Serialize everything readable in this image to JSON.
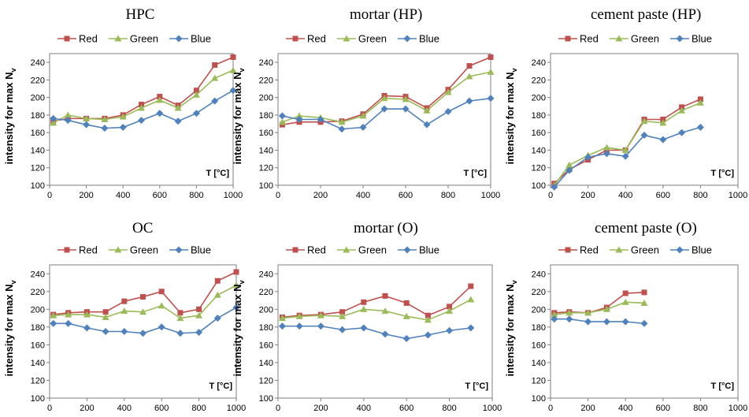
{
  "colors": {
    "Red": "#c0504d",
    "Green": "#9bbb59",
    "Blue": "#4f81bd"
  },
  "chart_data": [
    {
      "type": "line",
      "title": "HPC",
      "ylabel": "intensity for max N",
      "ylabel_sub": "v",
      "xlabel": "T [°C]",
      "xlim": [
        0,
        1000
      ],
      "ylim": [
        100,
        250
      ],
      "xticks": [
        0,
        200,
        400,
        600,
        800,
        1000
      ],
      "yticks": [
        100,
        120,
        140,
        160,
        180,
        200,
        220,
        240
      ],
      "legend": "top",
      "series": [
        {
          "name": "Red",
          "x": [
            20,
            100,
            200,
            300,
            400,
            500,
            600,
            700,
            800,
            900,
            1000
          ],
          "y": [
            173,
            176,
            176,
            176,
            180,
            192,
            201,
            191,
            208,
            237,
            246
          ]
        },
        {
          "name": "Green",
          "x": [
            20,
            100,
            200,
            300,
            400,
            500,
            600,
            700,
            800,
            900,
            1000
          ],
          "y": [
            171,
            180,
            176,
            175,
            178,
            188,
            197,
            188,
            203,
            222,
            231
          ]
        },
        {
          "name": "Blue",
          "x": [
            20,
            100,
            200,
            300,
            400,
            500,
            600,
            700,
            800,
            900,
            1000
          ],
          "y": [
            176,
            174,
            169,
            165,
            166,
            174,
            182,
            173,
            182,
            196,
            208
          ]
        }
      ]
    },
    {
      "type": "line",
      "title": "mortar (HP)",
      "ylabel": "intensity for max N",
      "ylabel_sub": "v",
      "xlabel": "T [°C]",
      "xlim": [
        0,
        1000
      ],
      "ylim": [
        100,
        250
      ],
      "xticks": [
        0,
        200,
        400,
        600,
        800,
        1000
      ],
      "yticks": [
        100,
        120,
        140,
        160,
        180,
        200,
        220,
        240
      ],
      "legend": "top",
      "series": [
        {
          "name": "Red",
          "x": [
            20,
            100,
            200,
            300,
            400,
            500,
            600,
            700,
            800,
            900,
            1000
          ],
          "y": [
            169,
            172,
            172,
            173,
            181,
            202,
            201,
            188,
            209,
            236,
            246
          ]
        },
        {
          "name": "Green",
          "x": [
            20,
            100,
            200,
            300,
            400,
            500,
            600,
            700,
            800,
            900,
            1000
          ],
          "y": [
            172,
            179,
            177,
            172,
            179,
            199,
            198,
            185,
            206,
            224,
            229
          ]
        },
        {
          "name": "Blue",
          "x": [
            20,
            100,
            200,
            300,
            400,
            500,
            600,
            700,
            800,
            900,
            1000
          ],
          "y": [
            179,
            175,
            175,
            164,
            166,
            187,
            187,
            169,
            184,
            196,
            199
          ]
        }
      ]
    },
    {
      "type": "line",
      "title": "cement paste (HP)",
      "ylabel": "intensity for max N",
      "ylabel_sub": "v",
      "xlabel": "T [°C]",
      "xlim": [
        0,
        1000
      ],
      "ylim": [
        100,
        250
      ],
      "xticks": [
        0,
        200,
        400,
        600,
        800,
        1000
      ],
      "yticks": [
        100,
        120,
        140,
        160,
        180,
        200,
        220,
        240
      ],
      "legend": "top",
      "series": [
        {
          "name": "Red",
          "x": [
            20,
            100,
            200,
            300,
            400,
            500,
            600,
            700,
            800
          ],
          "y": [
            102,
            118,
            129,
            140,
            140,
            175,
            175,
            189,
            198
          ]
        },
        {
          "name": "Green",
          "x": [
            20,
            100,
            200,
            300,
            400,
            500,
            600,
            700,
            800
          ],
          "y": [
            100,
            123,
            134,
            143,
            140,
            173,
            171,
            185,
            194
          ]
        },
        {
          "name": "Blue",
          "x": [
            20,
            100,
            200,
            300,
            400,
            500,
            600,
            700,
            800
          ],
          "y": [
            98,
            117,
            132,
            136,
            133,
            157,
            152,
            160,
            166
          ]
        }
      ]
    },
    {
      "type": "line",
      "title": "OC",
      "ylabel": "intensity for max N",
      "ylabel_sub": "v",
      "xlabel": "T [°C]",
      "xlim": [
        0,
        1000
      ],
      "ylim": [
        100,
        250
      ],
      "xticks": [
        0,
        200,
        400,
        600,
        800,
        1000
      ],
      "yticks": [
        100,
        120,
        140,
        160,
        180,
        200,
        220,
        240
      ],
      "legend": "top",
      "series": [
        {
          "name": "Red",
          "x": [
            20,
            100,
            200,
            300,
            400,
            500,
            600,
            700,
            800,
            900,
            1000
          ],
          "y": [
            194,
            196,
            197,
            197,
            209,
            214,
            220,
            196,
            200,
            232,
            242
          ]
        },
        {
          "name": "Green",
          "x": [
            20,
            100,
            200,
            300,
            400,
            500,
            600,
            700,
            800,
            900,
            1000
          ],
          "y": [
            193,
            194,
            194,
            191,
            198,
            197,
            204,
            190,
            193,
            216,
            227
          ]
        },
        {
          "name": "Blue",
          "x": [
            20,
            100,
            200,
            300,
            400,
            500,
            600,
            700,
            800,
            900,
            1000
          ],
          "y": [
            184,
            184,
            179,
            175,
            175,
            173,
            180,
            173,
            174,
            190,
            202
          ]
        }
      ]
    },
    {
      "type": "line",
      "title": "mortar (O)",
      "ylabel": "intensity for max N",
      "ylabel_sub": "v",
      "xlabel": "T [°C]",
      "xlim": [
        0,
        1000
      ],
      "ylim": [
        100,
        250
      ],
      "xticks": [
        0,
        200,
        400,
        600,
        800,
        1000
      ],
      "yticks": [
        100,
        120,
        140,
        160,
        180,
        200,
        220,
        240
      ],
      "legend": "top",
      "series": [
        {
          "name": "Red",
          "x": [
            20,
            100,
            200,
            300,
            400,
            500,
            600,
            700,
            800,
            900
          ],
          "y": [
            191,
            193,
            194,
            197,
            208,
            215,
            207,
            193,
            203,
            226
          ]
        },
        {
          "name": "Green",
          "x": [
            20,
            100,
            200,
            300,
            400,
            500,
            600,
            700,
            800,
            900
          ],
          "y": [
            190,
            192,
            193,
            192,
            200,
            198,
            192,
            188,
            198,
            211
          ]
        },
        {
          "name": "Blue",
          "x": [
            20,
            100,
            200,
            300,
            400,
            500,
            600,
            700,
            800,
            900
          ],
          "y": [
            181,
            181,
            181,
            177,
            179,
            172,
            167,
            171,
            176,
            179
          ]
        }
      ]
    },
    {
      "type": "line",
      "title": "cement paste (O)",
      "ylabel": "intensity for max N",
      "ylabel_sub": "v",
      "xlabel": "T [°C]",
      "xlim": [
        0,
        1000
      ],
      "ylim": [
        100,
        250
      ],
      "xticks": [
        0,
        200,
        400,
        600,
        800,
        1000
      ],
      "yticks": [
        100,
        120,
        140,
        160,
        180,
        200,
        220,
        240
      ],
      "legend": "top",
      "series": [
        {
          "name": "Red",
          "x": [
            20,
            100,
            200,
            300,
            400,
            500
          ],
          "y": [
            196,
            197,
            196,
            202,
            218,
            219
          ]
        },
        {
          "name": "Green",
          "x": [
            20,
            100,
            200,
            300,
            400,
            500
          ],
          "y": [
            194,
            196,
            196,
            200,
            208,
            207
          ]
        },
        {
          "name": "Blue",
          "x": [
            20,
            100,
            200,
            300,
            400,
            500
          ],
          "y": [
            189,
            189,
            186,
            186,
            186,
            184
          ]
        }
      ]
    }
  ]
}
